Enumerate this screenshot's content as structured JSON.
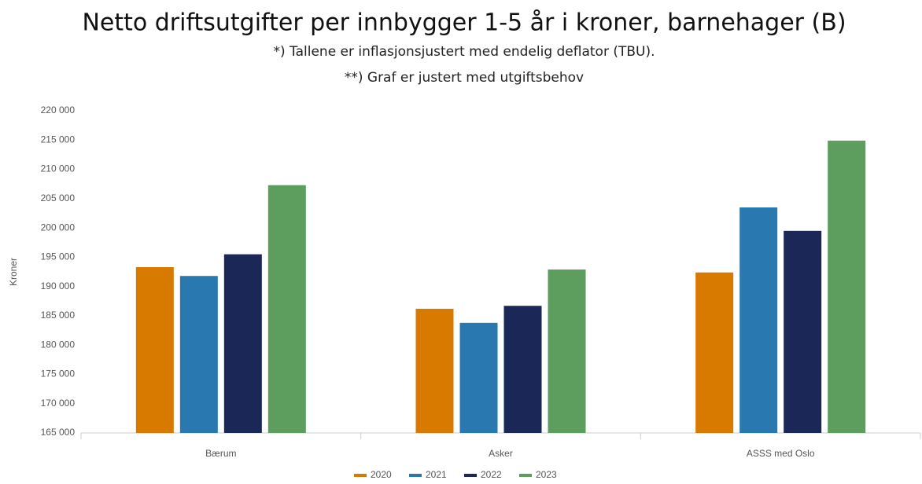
{
  "chart_data": {
    "type": "bar",
    "title": "Netto driftsutgifter per innbygger 1-5 år i kroner, barnehager (B)",
    "subtitle": [
      "*) Tallene er inflasjonsjustert med endelig deflator (TBU).",
      "**) Graf er justert med utgiftsbehov"
    ],
    "y_label": "Kroner",
    "categories": [
      "Bærum",
      "Asker",
      "ASSS med Oslo"
    ],
    "series": [
      {
        "name": "2020",
        "color": "#d97a00",
        "values": [
          193300,
          186200,
          192400
        ]
      },
      {
        "name": "2021",
        "color": "#2a78b0",
        "values": [
          191800,
          183800,
          203500
        ]
      },
      {
        "name": "2022",
        "color": "#1a2757",
        "values": [
          195500,
          186700,
          199500
        ]
      },
      {
        "name": "2023",
        "color": "#5d9e5f",
        "values": [
          207300,
          192900,
          214900
        ]
      }
    ],
    "ylim": [
      165000,
      220000
    ],
    "yticks": [
      {
        "value": 165000,
        "label": "165 000"
      },
      {
        "value": 170000,
        "label": "170 000"
      },
      {
        "value": 175000,
        "label": "175 000"
      },
      {
        "value": 180000,
        "label": "180 000"
      },
      {
        "value": 185000,
        "label": "185 000"
      },
      {
        "value": 190000,
        "label": "190 000"
      },
      {
        "value": 195000,
        "label": "195 000"
      },
      {
        "value": 200000,
        "label": "200 000"
      },
      {
        "value": 205000,
        "label": "205 000"
      },
      {
        "value": 210000,
        "label": "210 000"
      },
      {
        "value": 215000,
        "label": "215 000"
      },
      {
        "value": 220000,
        "label": "220 000"
      }
    ],
    "legend": "bottom"
  }
}
